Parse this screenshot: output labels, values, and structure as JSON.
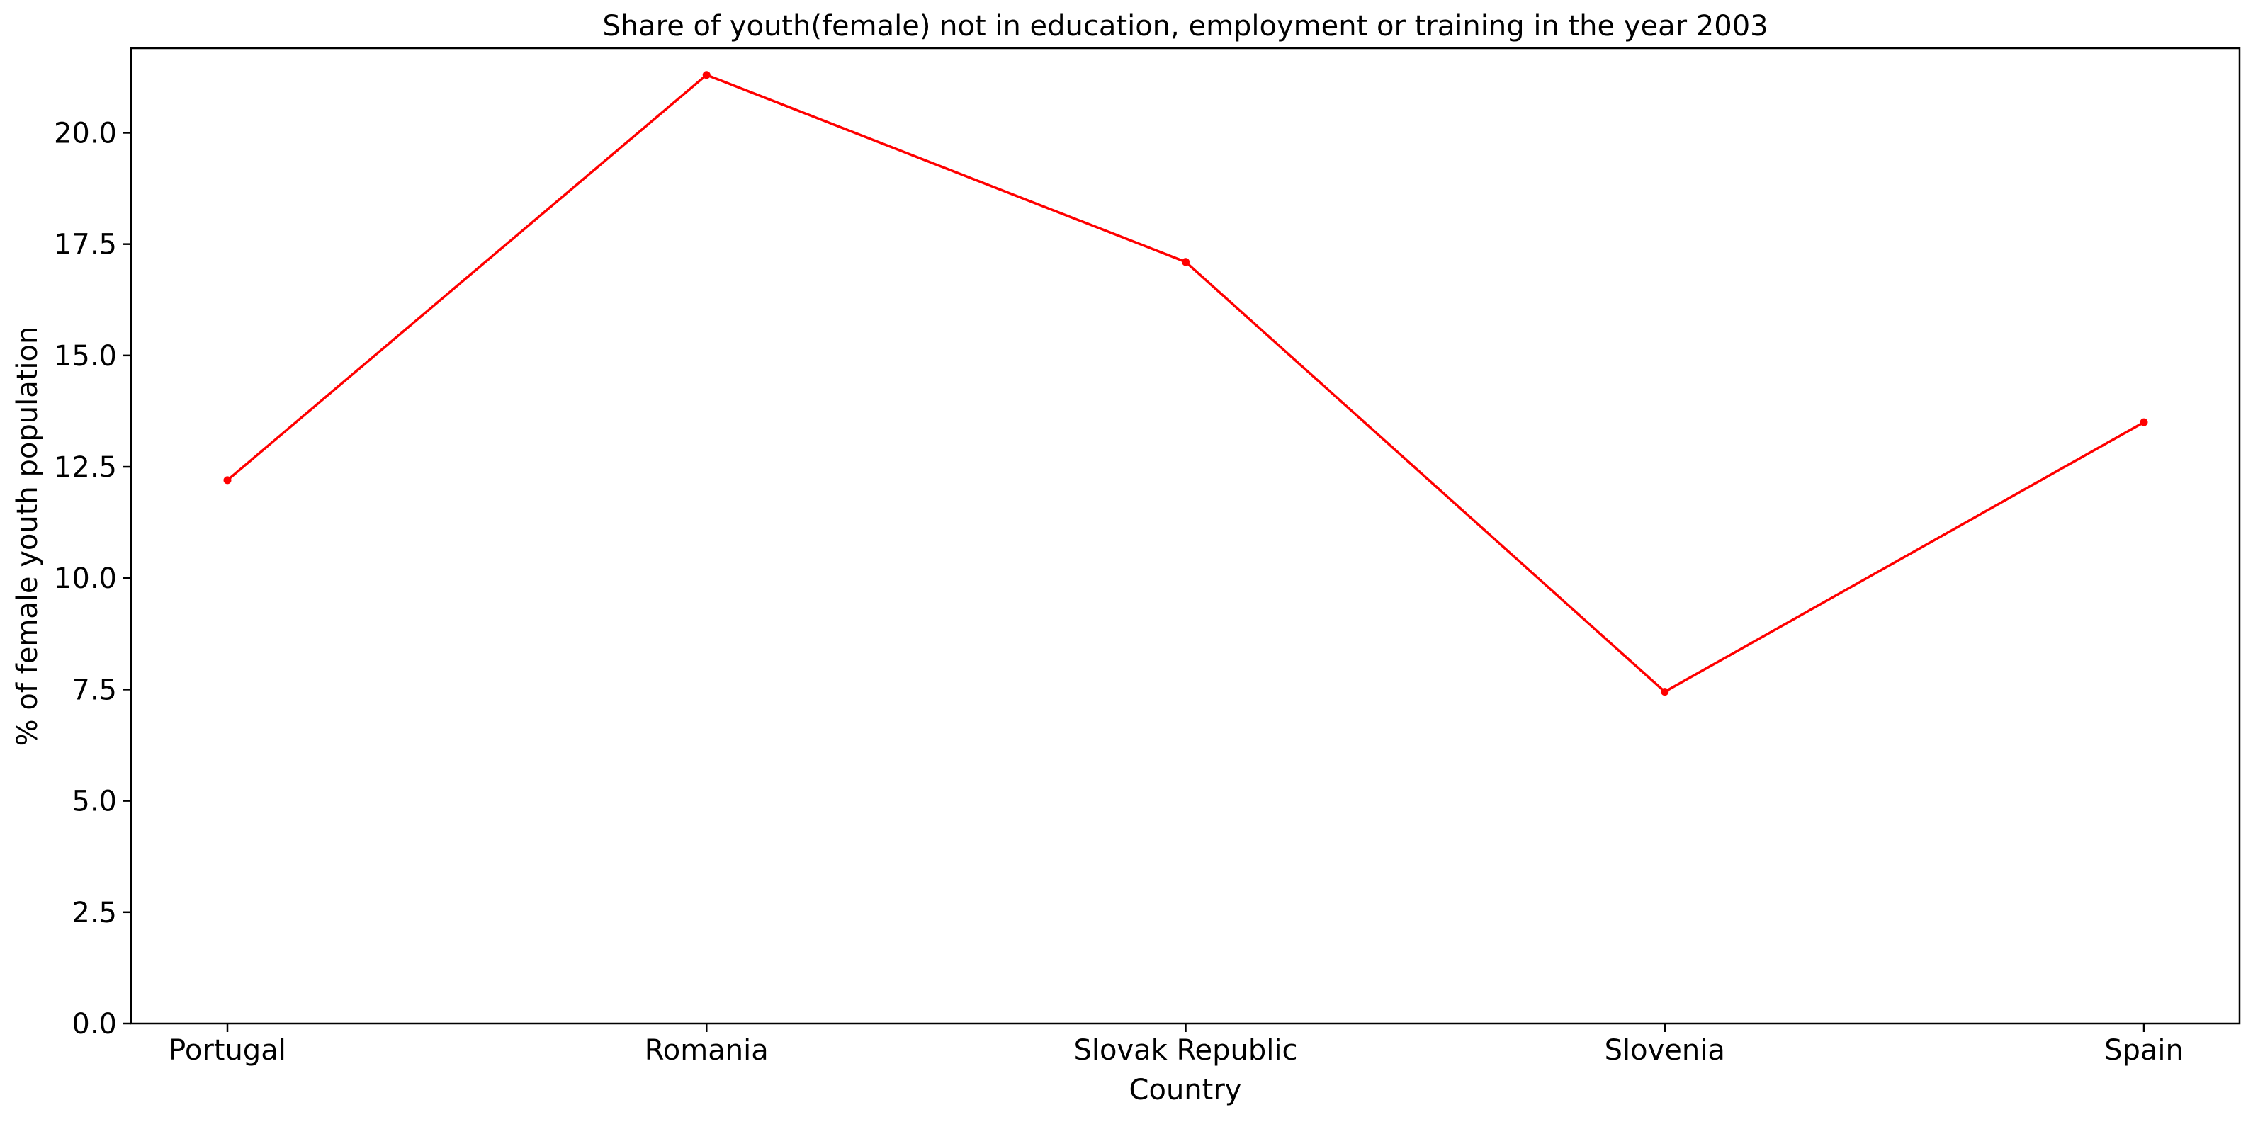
{
  "chart_data": {
    "type": "line",
    "title": "Share of youth(female) not in education, employment or training in the year 2003",
    "xlabel": "Country",
    "ylabel": "% of female youth population",
    "categories": [
      "Portugal",
      "Romania",
      "Slovak Republic",
      "Slovenia",
      "Spain"
    ],
    "series": [
      {
        "values": [
          12.2,
          21.3,
          17.1,
          7.45,
          13.5
        ],
        "color": "#ff0000"
      }
    ],
    "ylim": [
      0,
      21.9
    ],
    "yticks": [
      0.0,
      2.5,
      5.0,
      7.5,
      10.0,
      12.5,
      15.0,
      17.5,
      20.0
    ],
    "ytick_labels": [
      "0.0",
      "2.5",
      "5.0",
      "7.5",
      "10.0",
      "12.5",
      "15.0",
      "17.5",
      "20.0"
    ],
    "grid": false,
    "legend": false
  }
}
